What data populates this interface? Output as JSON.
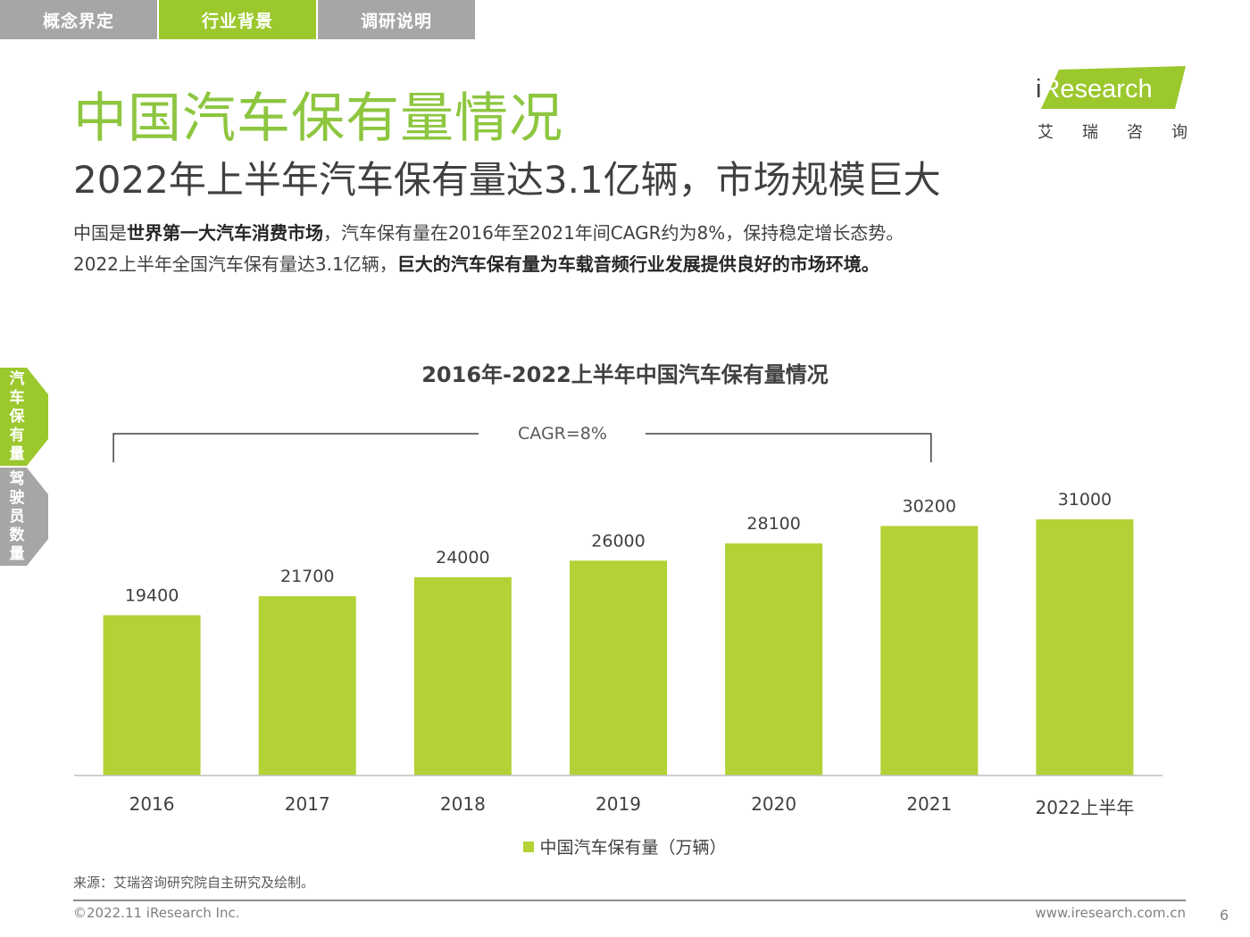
{
  "tabs": [
    {
      "label": "概念界定",
      "active": false
    },
    {
      "label": "行业背景",
      "active": true
    },
    {
      "label": "调研说明",
      "active": false
    }
  ],
  "title": "中国汽车保有量情况",
  "subtitle": "2022年上半年汽车保有量达3.1亿辆，市场规模巨大",
  "description": {
    "line1": [
      {
        "text": "中国是",
        "bold": false
      },
      {
        "text": "世界第一大汽车消费市场",
        "bold": true
      },
      {
        "text": "，汽车保有量在2016年至2021年间CAGR约为8%，保持稳定增长态势。",
        "bold": false
      }
    ],
    "line2": [
      {
        "text": "2022上半年全国汽车保有量达3.1亿辆，",
        "bold": false
      },
      {
        "text": "巨大的汽车保有量为车载音频行业发展提供良好的市场环境。",
        "bold": true
      }
    ]
  },
  "logo": {
    "brand_i": "i",
    "brand_rest": "Research",
    "cn": [
      "艾",
      "瑞",
      "咨",
      "询"
    ],
    "banner_color": "#9bc82d"
  },
  "side_tabs": [
    {
      "label": "汽车保有量",
      "active": true,
      "color": "#9bc82d"
    },
    {
      "label": "驾驶员数量",
      "active": false,
      "color": "#a6a6a6"
    }
  ],
  "chart_data": {
    "type": "bar",
    "title": "2016年-2022上半年中国汽车保有量情况",
    "categories": [
      "2016",
      "2017",
      "2018",
      "2019",
      "2020",
      "2021",
      "2022上半年"
    ],
    "series": [
      {
        "name": "中国汽车保有量（万辆）",
        "values": [
          19400,
          21700,
          24000,
          26000,
          28100,
          30200,
          31000
        ],
        "color": "#b2d235"
      }
    ],
    "ylim": [
      0,
      31000
    ],
    "grid": false,
    "data_labels": true,
    "legend_position": "bottom",
    "annotation": {
      "text": "CAGR=8%",
      "from": "2016",
      "to": "2021"
    }
  },
  "source": "来源：艾瑞咨询研究院自主研究及绘制。",
  "footer": {
    "copyright": "©2022.11 iResearch Inc.",
    "website": "www.iresearch.com.cn",
    "page": "6"
  }
}
